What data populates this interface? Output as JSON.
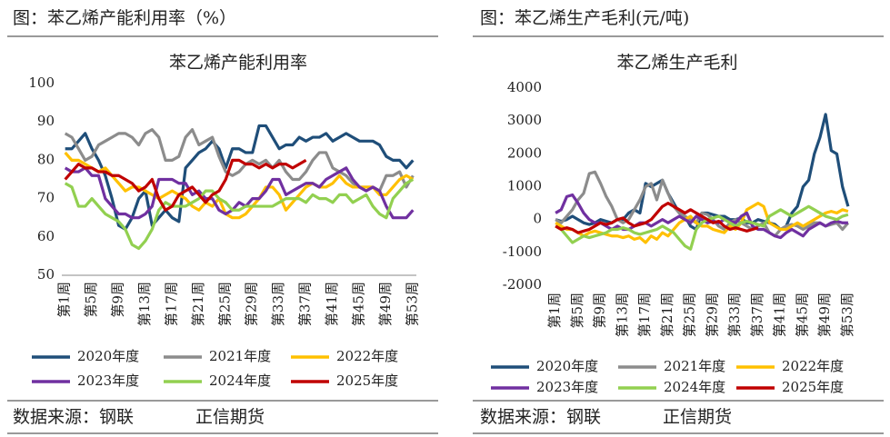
{
  "panels": [
    {
      "heading": "图：苯乙烯产能利用率（%）",
      "source": "数据来源：钢联",
      "author": "正信期货"
    },
    {
      "heading": "图：苯乙烯生产毛利(元/吨)",
      "source": "数据来源：钢联",
      "author": "正信期货"
    }
  ],
  "chart_data": [
    {
      "type": "line",
      "title": "苯乙烯产能利用率",
      "categories": [
        "第1周",
        null,
        null,
        null,
        "第5周",
        null,
        null,
        null,
        "第9周",
        null,
        null,
        null,
        "第13周",
        null,
        null,
        null,
        "第17周",
        null,
        null,
        null,
        "第21周",
        null,
        null,
        null,
        "第25周",
        null,
        null,
        null,
        "第29周",
        null,
        null,
        null,
        "第33周",
        null,
        null,
        null,
        "第37周",
        null,
        null,
        null,
        "第41周",
        null,
        null,
        null,
        "第45周",
        null,
        null,
        null,
        "第49周",
        null,
        null,
        null,
        "第53周"
      ],
      "ylim": [
        50,
        100
      ],
      "yticks": [
        50,
        60,
        70,
        80,
        90,
        100
      ],
      "grid": false,
      "legend": "bottom",
      "series": [
        {
          "name": "2020年度",
          "color": "#1f4e79",
          "values": [
            83,
            83,
            85,
            87,
            83,
            80,
            76,
            70,
            63,
            62,
            65,
            70,
            72,
            63,
            65,
            67,
            65,
            64,
            78,
            80,
            82,
            83,
            85,
            83,
            78,
            83,
            83,
            82,
            82,
            89,
            89,
            86,
            83,
            84,
            84,
            86,
            85,
            86,
            86,
            87,
            85,
            86,
            87,
            86,
            85,
            85,
            85,
            84,
            81,
            80,
            80,
            78,
            80
          ]
        },
        {
          "name": "2021年度",
          "color": "#8c8c8c",
          "values": [
            87,
            86,
            83,
            80,
            81,
            84,
            85,
            86,
            87,
            87,
            86,
            84,
            87,
            88,
            86,
            80,
            80,
            81,
            86,
            88,
            84,
            85,
            86,
            81,
            77,
            76,
            77,
            79,
            80,
            79,
            80,
            78,
            80,
            77,
            75,
            75,
            77,
            80,
            82,
            82,
            78,
            77,
            76,
            74,
            73,
            73,
            73,
            72,
            76,
            76,
            77,
            73,
            76
          ]
        },
        {
          "name": "2022年度",
          "color": "#ffc000",
          "values": [
            82,
            80,
            80,
            79,
            78,
            77,
            78,
            76,
            74,
            72,
            73,
            73,
            72,
            71,
            70,
            71,
            72,
            71,
            70,
            68,
            67,
            69,
            68,
            70,
            66,
            65,
            65,
            66,
            68,
            70,
            73,
            73,
            71,
            67,
            69,
            71,
            73,
            74,
            73,
            73,
            74,
            76,
            74,
            73,
            73,
            73,
            73,
            71,
            71,
            73,
            75,
            76,
            75
          ]
        },
        {
          "name": "2023年度",
          "color": "#7030a0",
          "values": [
            78,
            77,
            77,
            78,
            76,
            76,
            70,
            68,
            66,
            66,
            65,
            65,
            66,
            68,
            75,
            75,
            75,
            74,
            74,
            71,
            72,
            70,
            70,
            67,
            66,
            67,
            69,
            68,
            70,
            70,
            72,
            75,
            75,
            71,
            72,
            73,
            74,
            74,
            73,
            75,
            76,
            77,
            78,
            75,
            73,
            72,
            73,
            72,
            68,
            65,
            65,
            65,
            67
          ]
        },
        {
          "name": "2024年度",
          "color": "#92d050",
          "values": [
            74,
            73,
            68,
            68,
            70,
            68,
            66,
            65,
            64,
            62,
            58,
            57,
            59,
            62,
            67,
            69,
            68,
            68,
            68,
            69,
            70,
            72,
            72,
            70,
            69,
            67,
            67,
            68,
            68,
            68,
            68,
            68,
            69,
            70,
            70,
            70,
            69,
            71,
            70,
            70,
            69,
            71,
            71,
            69,
            70,
            71,
            68,
            66,
            65,
            70,
            72,
            74,
            75
          ]
        },
        {
          "name": "2025年度",
          "color": "#c00000",
          "values": [
            75,
            77,
            79,
            78,
            78,
            77,
            77,
            76,
            76,
            75,
            74,
            72,
            73,
            75,
            70,
            67,
            68,
            71,
            72,
            73,
            71,
            69,
            71,
            72,
            75,
            80,
            80,
            79,
            79,
            78,
            79,
            78,
            79,
            79,
            78,
            79,
            80,
            null,
            null,
            null,
            null,
            null,
            null,
            null,
            null,
            null,
            null,
            null,
            null,
            null,
            null,
            null,
            null
          ]
        }
      ]
    },
    {
      "type": "line",
      "title": "苯乙烯生产毛利",
      "categories": [
        "第1周",
        null,
        null,
        null,
        "第5周",
        null,
        null,
        null,
        "第9周",
        null,
        null,
        null,
        "第13周",
        null,
        null,
        null,
        "第17周",
        null,
        null,
        null,
        "第21周",
        null,
        null,
        null,
        "第25周",
        null,
        null,
        null,
        "第29周",
        null,
        null,
        null,
        "第33周",
        null,
        null,
        null,
        "第37周",
        null,
        null,
        null,
        "第41周",
        null,
        null,
        null,
        "第45周",
        null,
        null,
        null,
        "第49周",
        null,
        null,
        null,
        "第53周"
      ],
      "ylim": [
        -2000,
        4000
      ],
      "yticks": [
        -2000,
        -1000,
        0,
        1000,
        2000,
        3000,
        4000
      ],
      "grid": false,
      "legend": "bottom",
      "series": [
        {
          "name": "2020年度",
          "color": "#1f4e79",
          "values": [
            0,
            -50,
            0,
            100,
            0,
            -100,
            -150,
            -100,
            0,
            -50,
            -100,
            0,
            0,
            200,
            300,
            200,
            1100,
            1000,
            1100,
            1200,
            800,
            500,
            200,
            100,
            -200,
            -300,
            200,
            200,
            150,
            100,
            100,
            0,
            0,
            50,
            -100,
            -100,
            0,
            -50,
            -100,
            -150,
            -300,
            -200,
            200,
            400,
            1000,
            1200,
            2000,
            2500,
            3200,
            2100,
            2000,
            1000,
            400
          ]
        },
        {
          "name": "2021年度",
          "color": "#8c8c8c",
          "values": [
            0,
            -100,
            100,
            300,
            600,
            800,
            1400,
            1450,
            1100,
            700,
            400,
            0,
            -100,
            0,
            300,
            600,
            1000,
            1100,
            600,
            1200,
            800,
            400,
            200,
            100,
            0,
            -100,
            200,
            150,
            0,
            -200,
            -300,
            -100,
            0,
            -100,
            -200,
            -300,
            -200,
            -100,
            -400,
            -500,
            -300,
            -200,
            -150,
            -200,
            -300,
            -200,
            -100,
            -100,
            -200,
            -150,
            -100,
            -300,
            -100
          ]
        },
        {
          "name": "2022年度",
          "color": "#ffc000",
          "values": [
            -100,
            -200,
            -300,
            -300,
            -400,
            -500,
            -400,
            -350,
            -400,
            -450,
            -500,
            -500,
            -550,
            -500,
            -600,
            -550,
            -700,
            -500,
            -600,
            -400,
            -500,
            -300,
            -100,
            0,
            100,
            -100,
            -200,
            -200,
            -300,
            -350,
            -400,
            -200,
            -300,
            -100,
            300,
            400,
            500,
            400,
            -100,
            -200,
            -300,
            -300,
            -200,
            -100,
            -200,
            -100,
            0,
            100,
            200,
            250,
            200,
            300,
            250
          ]
        },
        {
          "name": "2023年度",
          "color": "#7030a0",
          "values": [
            200,
            300,
            700,
            750,
            500,
            200,
            0,
            -100,
            -100,
            -200,
            -300,
            -200,
            -300,
            -300,
            -200,
            -100,
            -100,
            -200,
            -100,
            0,
            -100,
            0,
            100,
            0,
            -100,
            100,
            0,
            -100,
            -50,
            -100,
            0,
            -50,
            -100,
            100,
            200,
            -200,
            -300,
            -300,
            -400,
            -500,
            -550,
            -400,
            -300,
            -400,
            -500,
            -300,
            -200,
            -100,
            -200,
            -100,
            -50,
            -100,
            -100
          ]
        },
        {
          "name": "2024年度",
          "color": "#92d050",
          "values": [
            -200,
            -300,
            -500,
            -700,
            -600,
            -500,
            -550,
            -500,
            -450,
            -400,
            -300,
            -300,
            -250,
            -300,
            -400,
            -450,
            -400,
            -350,
            -300,
            -200,
            -300,
            -400,
            -600,
            -800,
            -900,
            -300,
            -100,
            0,
            50,
            100,
            0,
            -100,
            -200,
            -100,
            -50,
            -100,
            -150,
            -200,
            100,
            200,
            300,
            200,
            100,
            200,
            300,
            400,
            300,
            200,
            100,
            50,
            0,
            100,
            150
          ]
        },
        {
          "name": "2025年度",
          "color": "#c00000",
          "values": [
            -200,
            -300,
            -250,
            -300,
            -400,
            -350,
            -300,
            -200,
            -100,
            -150,
            -100,
            0,
            50,
            -100,
            -200,
            -150,
            -100,
            0,
            200,
            400,
            500,
            400,
            300,
            200,
            300,
            200,
            100,
            0,
            -100,
            -50,
            -200,
            -300,
            -250,
            -300,
            -350,
            -300,
            -250,
            null,
            null,
            null,
            null,
            null,
            null,
            null,
            null,
            null,
            null,
            null,
            null,
            null,
            null,
            null,
            null
          ]
        }
      ]
    }
  ]
}
